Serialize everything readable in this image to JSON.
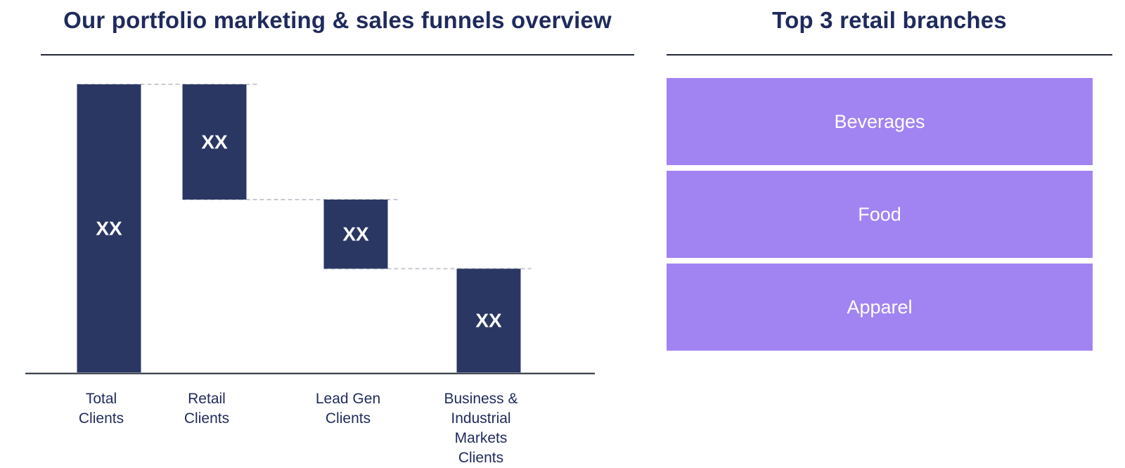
{
  "left_title": "Our portfolio marketing & sales funnels overview",
  "right_title": "Top 3 retail branches",
  "colors": {
    "bar": "#2b3763",
    "branch": "#a283f2",
    "title": "#1f2a5c",
    "connector": "#c8cbd2"
  },
  "chart_data": {
    "type": "bar",
    "subtype": "waterfall",
    "title": "Our portfolio marketing & sales funnels overview",
    "categories": [
      "Total\nClients",
      "Retail\nClients",
      "Lead Gen\nClients",
      "Business &\nIndustrial\nMarkets\nClients"
    ],
    "bars": [
      {
        "category": "Total Clients",
        "start": 0,
        "end": 100,
        "label": "XX"
      },
      {
        "category": "Retail Clients",
        "start": 60,
        "end": 100,
        "label": "XX"
      },
      {
        "category": "Lead Gen Clients",
        "start": 36,
        "end": 60,
        "label": "XX"
      },
      {
        "category": "Business & Industrial Markets Clients",
        "start": 0,
        "end": 36,
        "label": "XX"
      }
    ],
    "ylim": [
      0,
      100
    ],
    "xlabel": "",
    "ylabel": "",
    "grid": false,
    "legend": "none"
  },
  "branches": [
    {
      "label": "Beverages"
    },
    {
      "label": "Food"
    },
    {
      "label": "Apparel"
    }
  ]
}
